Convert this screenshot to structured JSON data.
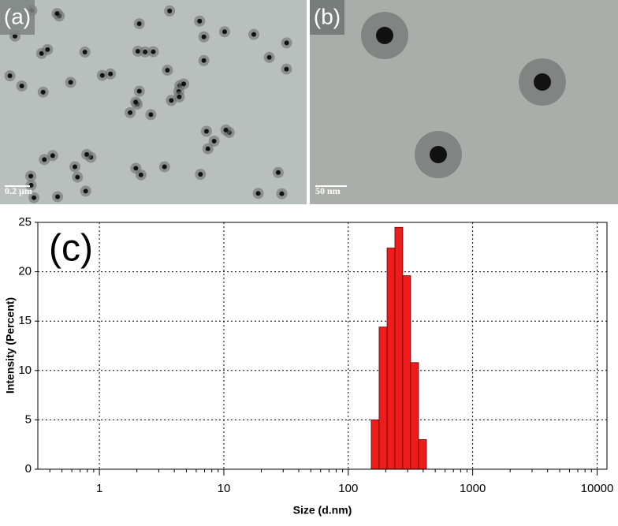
{
  "panels": [
    {
      "label": "(a)",
      "scale_bar": "0.2 µm"
    },
    {
      "label": "(b)",
      "scale_bar": "50 nm"
    }
  ],
  "chart_data": {
    "type": "histogram",
    "panel_label": "(c)",
    "x_label": "Size (d.nm)",
    "y_label": "Intensity (Percent)",
    "bins": [
      153,
      177,
      205,
      237,
      274,
      317,
      367,
      425
    ],
    "counts": [
      5.0,
      14.4,
      22.4,
      24.5,
      19.6,
      10.8,
      3.0
    ],
    "color": "#ee1c1c",
    "xscale": "log",
    "xlim": [
      0.32,
      12000
    ],
    "xticks": [
      1,
      10,
      100,
      1000,
      10000
    ],
    "ylim": [
      0,
      25
    ],
    "yticks": [
      0,
      5,
      10,
      15,
      20,
      25
    ],
    "grid": true
  }
}
